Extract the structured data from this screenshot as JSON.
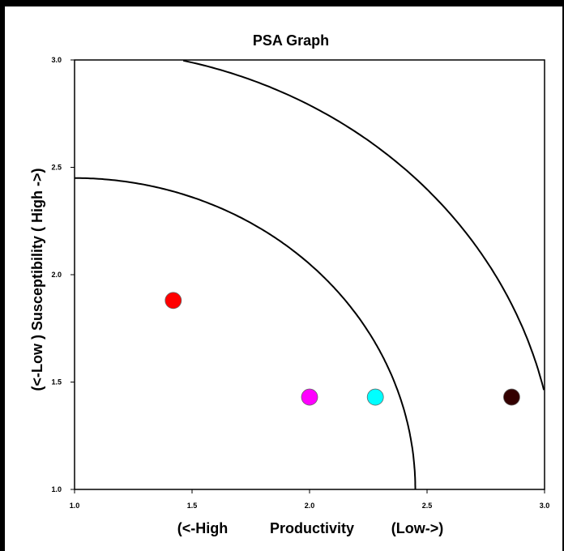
{
  "chart_data": {
    "type": "scatter",
    "title": "PSA Graph",
    "xlabel": {
      "left": "(<-High",
      "center": "Productivity",
      "right": "(Low->)"
    },
    "ylabel": "(<-Low ) Susceptibility ( High ->)",
    "xlim": [
      1.0,
      3.0
    ],
    "ylim": [
      1.0,
      3.0
    ],
    "xticks": [
      {
        "value": 1.0,
        "label": "1.0"
      },
      {
        "value": 1.5,
        "label": "1.5"
      },
      {
        "value": 2.0,
        "label": "2.0"
      },
      {
        "value": 2.5,
        "label": "2.5"
      },
      {
        "value": 3.0,
        "label": "3.0"
      }
    ],
    "yticks": [
      {
        "value": 1.0,
        "label": "1.0"
      },
      {
        "value": 1.5,
        "label": "1.5"
      },
      {
        "value": 2.0,
        "label": "2.0"
      },
      {
        "value": 2.5,
        "label": "2.5"
      },
      {
        "value": 3.0,
        "label": "3.0"
      }
    ],
    "grid": false,
    "curves": [
      {
        "center": [
          1.0,
          1.0
        ],
        "radius": 1.45
      },
      {
        "center": [
          1.0,
          1.0
        ],
        "radius": 2.05
      }
    ],
    "points": [
      {
        "x": 1.42,
        "y": 1.88,
        "color": "#ff0000"
      },
      {
        "x": 2.0,
        "y": 1.43,
        "color": "#ff00ff"
      },
      {
        "x": 2.28,
        "y": 1.43,
        "color": "#00ffff"
      },
      {
        "x": 2.86,
        "y": 1.43,
        "color": "#330000"
      }
    ]
  }
}
